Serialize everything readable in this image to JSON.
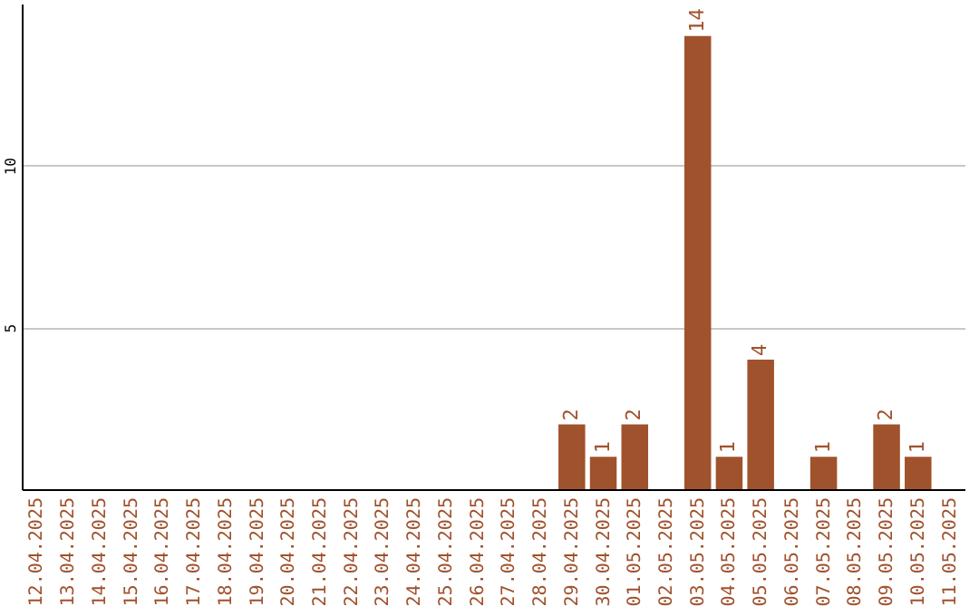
{
  "chart_data": {
    "type": "bar",
    "categories": [
      "12.04.2025",
      "13.04.2025",
      "14.04.2025",
      "15.04.2025",
      "16.04.2025",
      "17.04.2025",
      "18.04.2025",
      "19.04.2025",
      "20.04.2025",
      "21.04.2025",
      "22.04.2025",
      "23.04.2025",
      "24.04.2025",
      "25.04.2025",
      "26.04.2025",
      "27.04.2025",
      "28.04.2025",
      "29.04.2025",
      "30.04.2025",
      "01.05.2025",
      "02.05.2025",
      "03.05.2025",
      "04.05.2025",
      "05.05.2025",
      "06.05.2025",
      "07.05.2025",
      "08.05.2025",
      "09.05.2025",
      "10.05.2025",
      "11.05.2025"
    ],
    "values": [
      0,
      0,
      0,
      0,
      0,
      0,
      0,
      0,
      0,
      0,
      0,
      0,
      0,
      0,
      0,
      0,
      0,
      2,
      1,
      2,
      0,
      14,
      1,
      4,
      0,
      1,
      0,
      2,
      1,
      0
    ],
    "value_labels": [
      null,
      null,
      null,
      null,
      null,
      null,
      null,
      null,
      null,
      null,
      null,
      null,
      null,
      null,
      null,
      null,
      null,
      "2",
      "1",
      "2",
      null,
      "14",
      "1",
      "4",
      null,
      "1",
      null,
      "2",
      "1",
      null
    ],
    "color": "#a0522d",
    "ylim": [
      0,
      15
    ],
    "yticks": [
      5,
      10
    ],
    "grid": "y"
  }
}
